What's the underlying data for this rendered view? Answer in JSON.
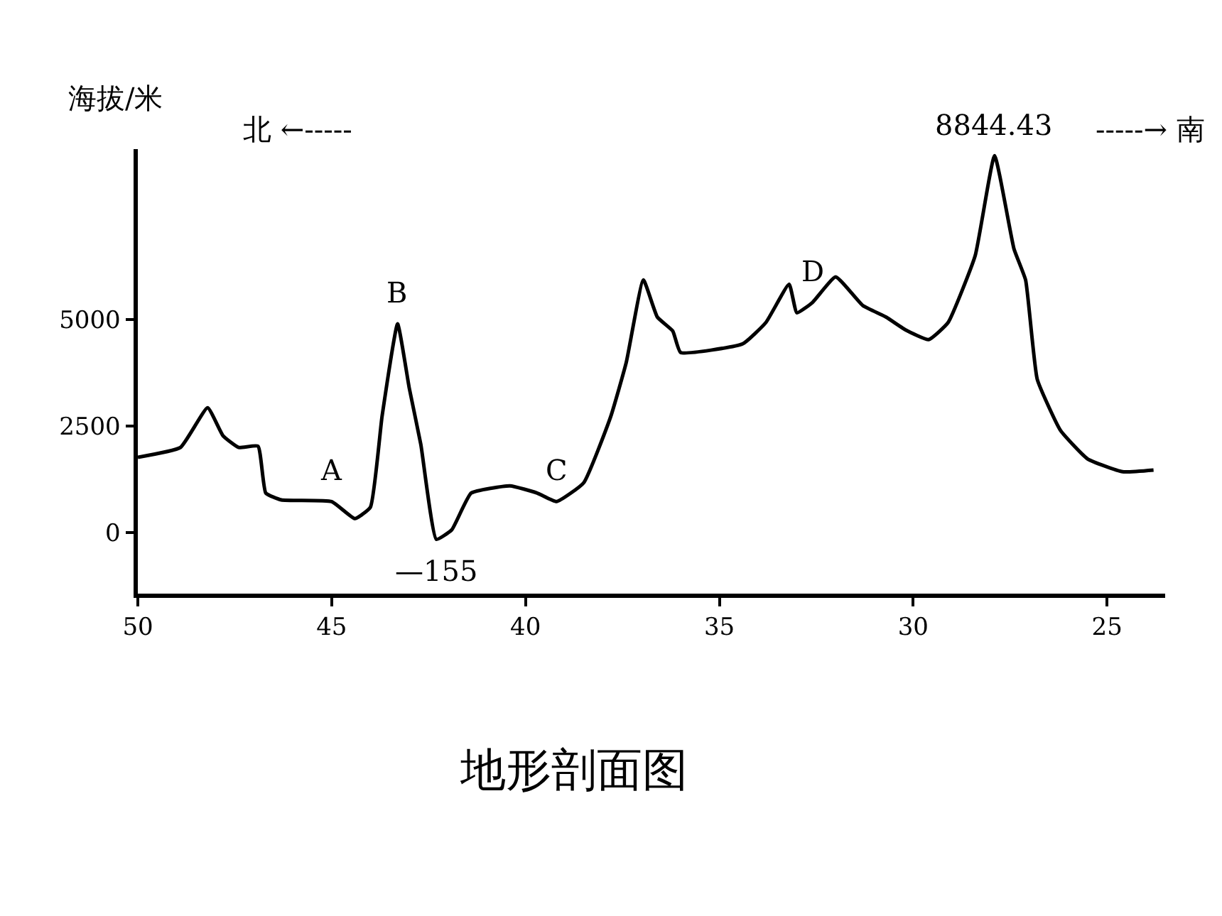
{
  "chart_data": {
    "type": "line",
    "title": "地形剖面图",
    "ylabel": "海拔/米",
    "x": [
      50,
      48.9,
      48.2,
      47.8,
      47.4,
      46.9,
      46.7,
      46.3,
      45,
      44.4,
      44.0,
      43.7,
      43.3,
      43.0,
      42.7,
      42.3,
      41.9,
      41.4,
      40.4,
      39.7,
      39.2,
      38.5,
      37.8,
      37.4,
      36.96,
      36.6,
      36.2,
      36.0,
      34.4,
      33.8,
      33.2,
      33.0,
      32.6,
      32.0,
      31.3,
      30.7,
      30.2,
      29.6,
      29.1,
      28.4,
      27.9,
      27.4,
      27.1,
      26.8,
      26.2,
      25.5,
      24.6,
      23.8
    ],
    "series": [
      {
        "color": "#000000",
        "values": [
          1770,
          2000,
          2930,
          2270,
          2000,
          2030,
          930,
          770,
          730,
          330,
          600,
          2730,
          4900,
          3400,
          2070,
          -155,
          70,
          930,
          1100,
          930,
          730,
          1170,
          2730,
          4000,
          5930,
          5060,
          4730,
          4230,
          4430,
          4930,
          5830,
          5160,
          5400,
          6000,
          5330,
          5060,
          4760,
          4530,
          4930,
          6500,
          8844.43,
          6660,
          5930,
          3600,
          2400,
          1730,
          1430,
          1470
        ]
      }
    ],
    "xlim": [
      50,
      23.5
    ],
    "xticks": [
      50,
      45,
      40,
      35,
      30,
      25
    ],
    "ylim": [
      -1430,
      9000
    ],
    "yticks": [
      0,
      2500,
      5000
    ],
    "marker": "none",
    "line_style": "solid",
    "annotations": [
      {
        "text": "A",
        "x": 45,
        "y": 730
      },
      {
        "text": "B",
        "x": 43.3,
        "y": 4900
      },
      {
        "text": "C",
        "x": 39.2,
        "y": 730
      },
      {
        "text": "D",
        "x": 32.6,
        "y": 5400
      },
      {
        "text": "8844.43",
        "x": 27.9,
        "y": 8844.43
      },
      {
        "text": "—155",
        "x": 42.3,
        "y": -155
      },
      "北 ←-----",
      "-----→ 南"
    ]
  }
}
